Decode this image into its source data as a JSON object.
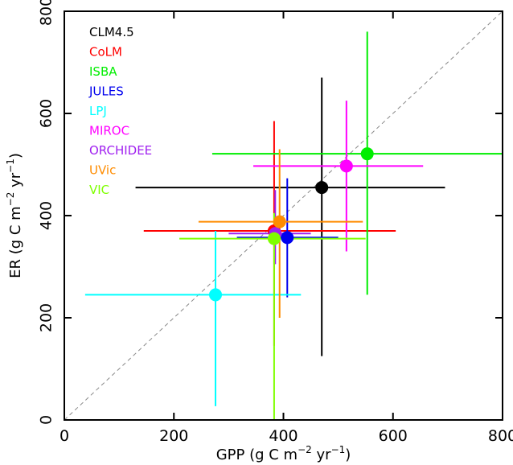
{
  "chart_data": {
    "type": "scatter",
    "title": "",
    "xlabel": {
      "main": "GPP (g C m",
      "sup1": "−2",
      "mid": " yr",
      "sup2": "−1",
      "end": ")"
    },
    "ylabel": {
      "main": "ER (g C m",
      "sup1": "−2",
      "mid": " yr",
      "sup2": "−1",
      "end": ")"
    },
    "xlim": [
      0,
      800
    ],
    "ylim": [
      0,
      800
    ],
    "xticks": [
      "0",
      "200",
      "400",
      "600",
      "800"
    ],
    "yticks": [
      "0",
      "200",
      "400",
      "600",
      "800"
    ],
    "one_to_one_line": true,
    "grid": false,
    "legend_position": "top-left",
    "series": [
      {
        "name": "CLM4.5",
        "color": "#000000",
        "x": 470,
        "y": 455,
        "xerr": [
          130,
          695
        ],
        "yerr": [
          125,
          670
        ]
      },
      {
        "name": "CoLM",
        "color": "#ff0000",
        "x": 383,
        "y": 370,
        "xerr": [
          145,
          605
        ],
        "yerr": [
          145,
          585
        ]
      },
      {
        "name": "ISBA",
        "color": "#00ee00",
        "x": 553,
        "y": 521,
        "xerr": [
          270,
          800
        ],
        "yerr": [
          245,
          760
        ]
      },
      {
        "name": "JULES",
        "color": "#0000ee",
        "x": 407,
        "y": 357,
        "xerr": [
          315,
          500
        ],
        "yerr": [
          240,
          473
        ]
      },
      {
        "name": "LPJ",
        "color": "#00ffff",
        "x": 276,
        "y": 245,
        "xerr": [
          38,
          432
        ],
        "yerr": [
          27,
          370
        ]
      },
      {
        "name": "MIROC",
        "color": "#ff00ff",
        "x": 515,
        "y": 497,
        "xerr": [
          345,
          655
        ],
        "yerr": [
          330,
          625
        ]
      },
      {
        "name": "ORCHIDEE",
        "color": "#a020f0",
        "x": 385,
        "y": 365,
        "xerr": [
          300,
          450
        ],
        "yerr": [
          305,
          450
        ]
      },
      {
        "name": "UVic",
        "color": "#ff8c00",
        "x": 393,
        "y": 388,
        "xerr": [
          245,
          545
        ],
        "yerr": [
          200,
          530
        ]
      },
      {
        "name": "VIC",
        "color": "#7fff00",
        "x": 383,
        "y": 355,
        "xerr": [
          210,
          550
        ],
        "yerr": [
          0,
          405
        ]
      }
    ]
  }
}
